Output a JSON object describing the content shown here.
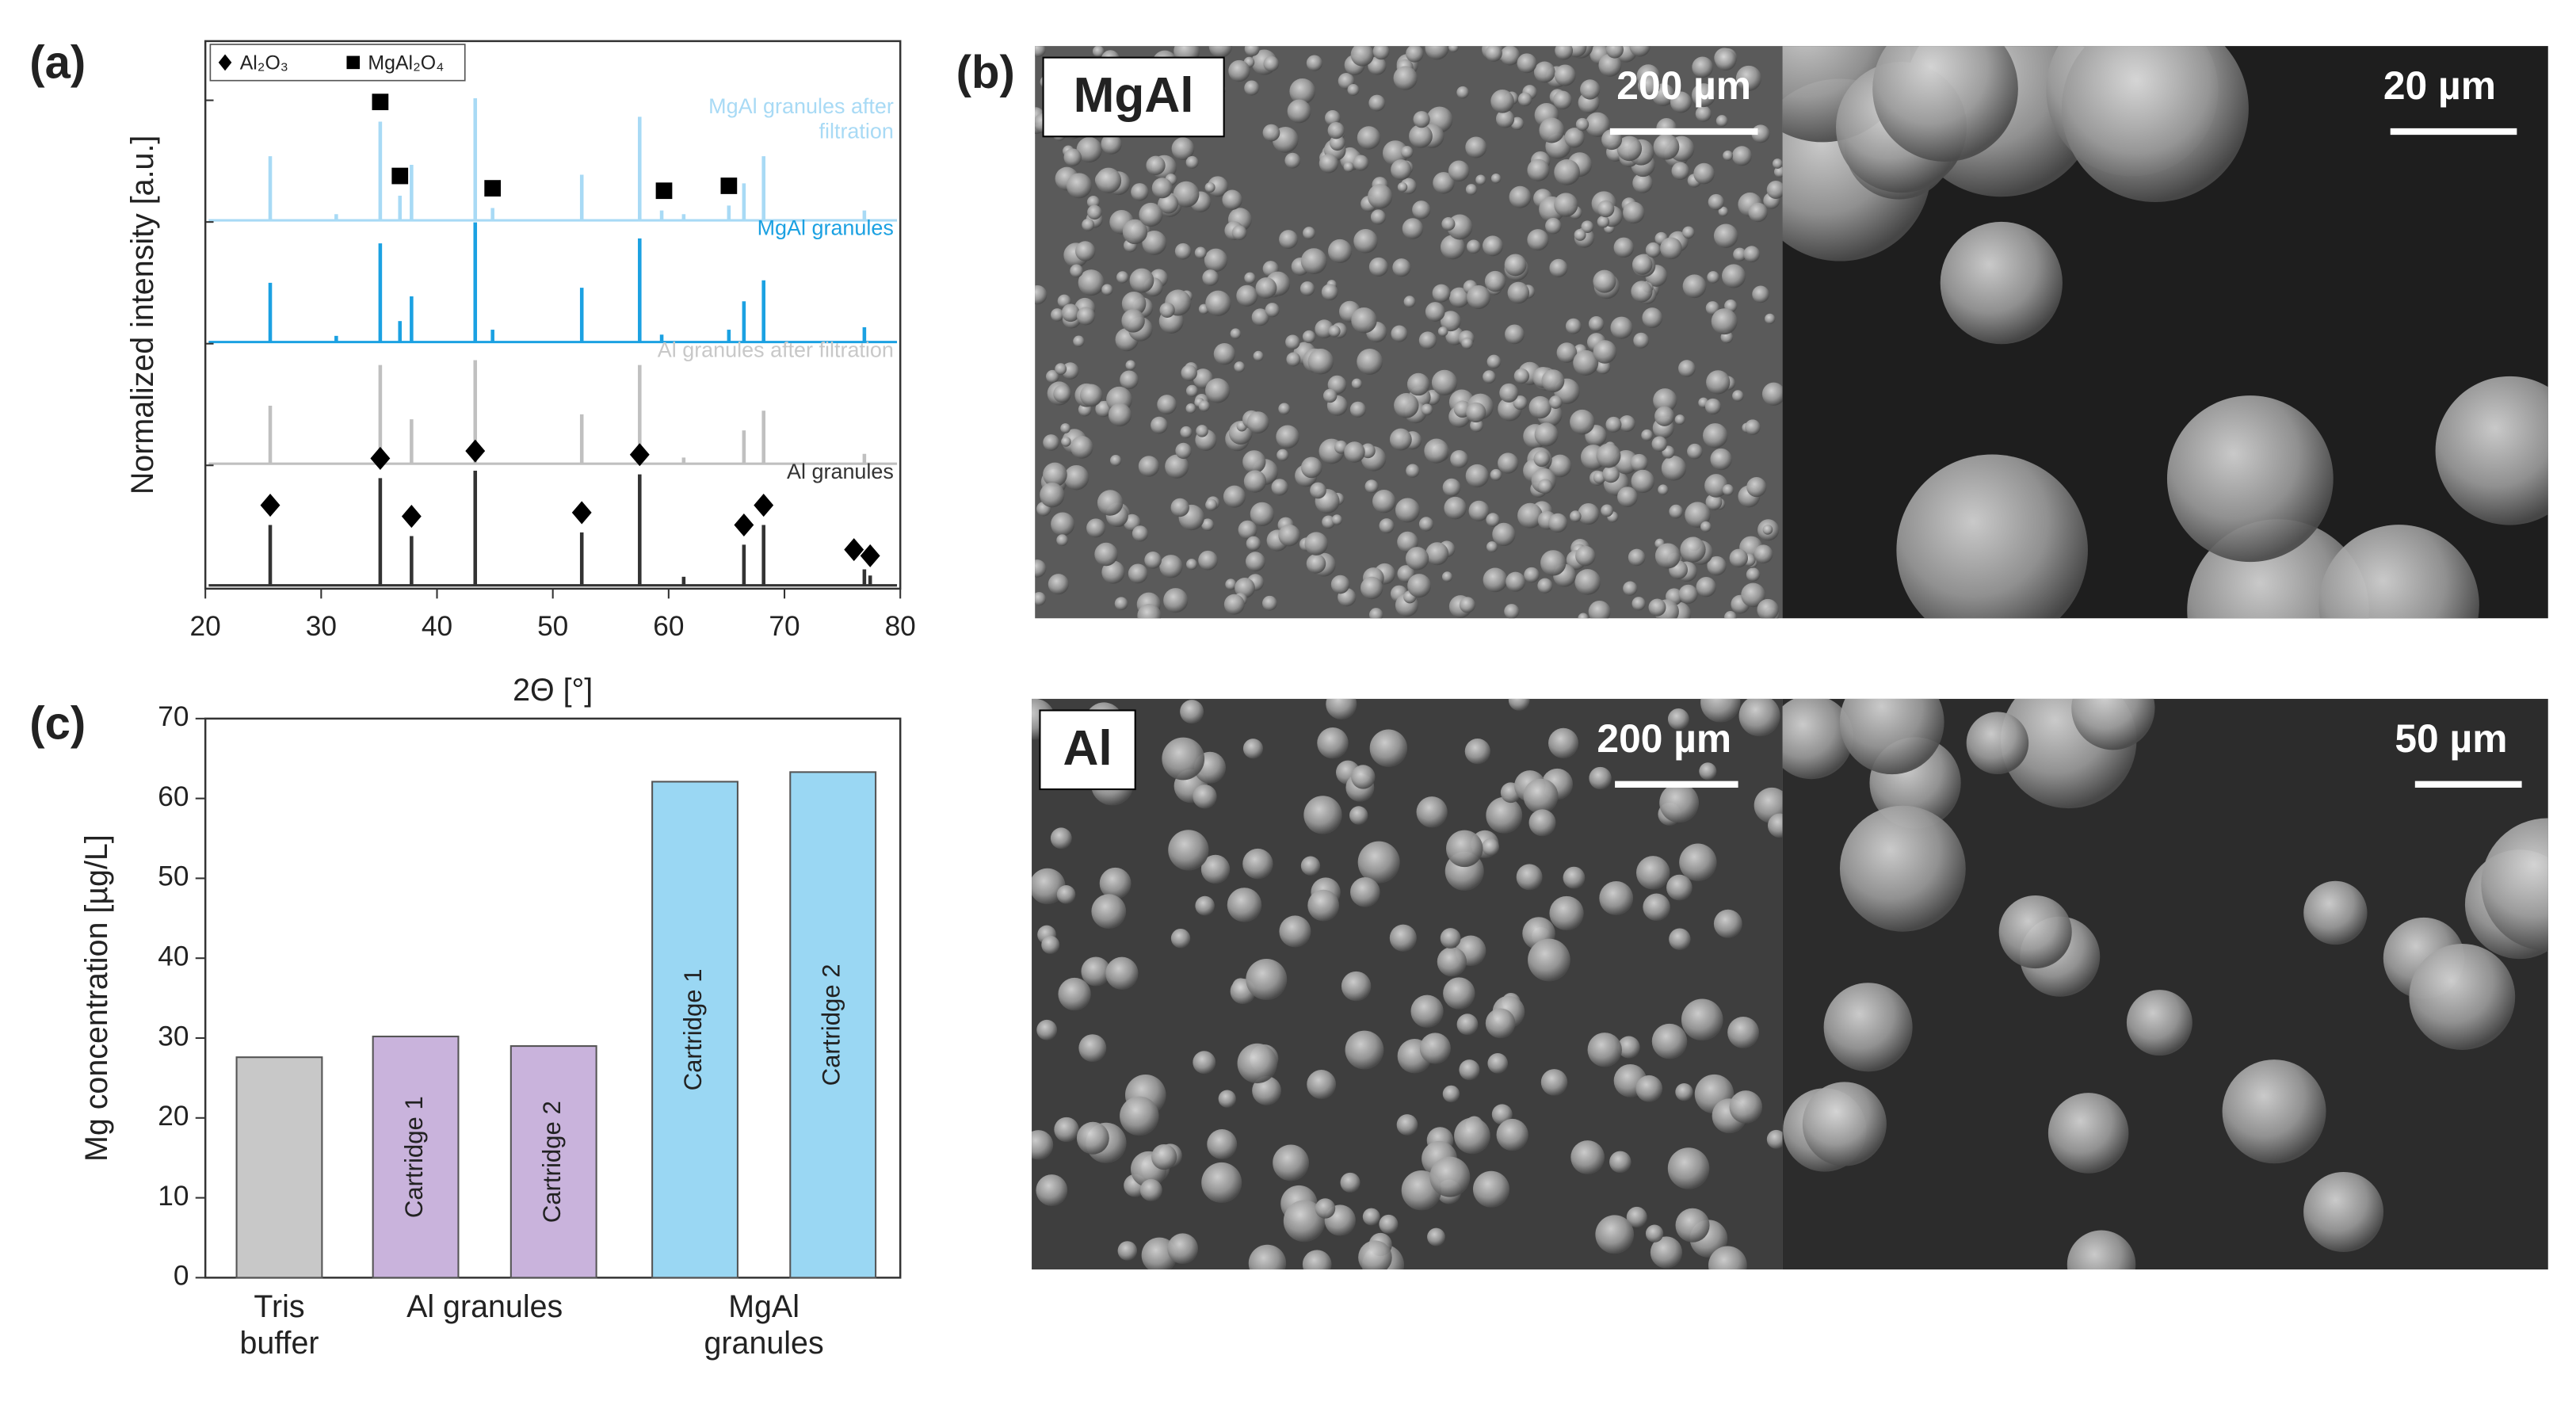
{
  "panels": {
    "a": "(a)",
    "b": "(b)",
    "c": "(c)"
  },
  "chart_data": [
    {
      "type": "line",
      "xlabel": "2Θ [°]",
      "ylabel": "Normalized intensity [a.u.]",
      "xlim": [
        20,
        80
      ],
      "xticks": [
        20,
        30,
        40,
        50,
        60,
        70,
        80
      ],
      "legend": "upper left",
      "series": [
        {
          "name": "MgAl granules after filtration",
          "color": "#a8daf5",
          "x": [
            25.6,
            31.3,
            35.1,
            36.8,
            37.8,
            43.3,
            44.8,
            52.5,
            57.5,
            59.4,
            61.3,
            65.2,
            66.5,
            68.2,
            76.9
          ],
          "values": [
            0.52,
            0.05,
            0.8,
            0.2,
            0.45,
            0.99,
            0.1,
            0.37,
            0.84,
            0.08,
            0.05,
            0.12,
            0.3,
            0.52,
            0.08
          ],
          "phase": {
            "name": "MgAl₂O₄",
            "shape": "square",
            "x": [
              35.1,
              36.8,
              44.8,
              59.6,
              65.2
            ]
          }
        },
        {
          "name": "MgAl granules",
          "color": "#1ba1e2",
          "x": [
            25.6,
            31.3,
            35.1,
            36.8,
            37.8,
            43.3,
            44.8,
            52.5,
            57.5,
            59.4,
            65.2,
            66.5,
            68.2,
            76.9
          ],
          "values": [
            0.48,
            0.05,
            0.8,
            0.17,
            0.37,
            0.97,
            0.1,
            0.44,
            0.84,
            0.06,
            0.1,
            0.33,
            0.5,
            0.12
          ]
        },
        {
          "name": "Al granules after filtration",
          "color": "#c0c0c0",
          "x": [
            25.6,
            35.1,
            37.8,
            43.3,
            52.5,
            57.5,
            61.3,
            66.5,
            68.2,
            76.9
          ],
          "values": [
            0.47,
            0.8,
            0.36,
            0.84,
            0.4,
            0.8,
            0.05,
            0.27,
            0.43,
            0.08
          ]
        },
        {
          "name": "Al granules",
          "color": "#333333",
          "x": [
            25.6,
            35.1,
            37.8,
            43.3,
            52.5,
            57.5,
            61.3,
            66.5,
            68.2,
            76.9,
            77.4
          ],
          "values": [
            0.49,
            0.87,
            0.4,
            0.93,
            0.43,
            0.9,
            0.07,
            0.33,
            0.49,
            0.13,
            0.08
          ],
          "phase": {
            "name": "Al₂O₃",
            "shape": "diamond",
            "x": [
              25.6,
              35.1,
              37.8,
              43.3,
              52.5,
              57.5,
              66.5,
              68.2,
              76.0,
              77.4
            ]
          }
        }
      ]
    },
    {
      "type": "bar",
      "ylabel": "Mg concentration [µg/L]",
      "ylim": [
        0,
        70
      ],
      "yticks": [
        0,
        10,
        20,
        30,
        40,
        50,
        60,
        70
      ],
      "series": [
        {
          "name": "Tris buffer",
          "color": "#c8c8c8",
          "labels": [
            null
          ],
          "values": [
            27.6
          ]
        },
        {
          "name": "Al granules",
          "color": "#c9b3dc",
          "labels": [
            "Cartridge 1",
            "Cartridge 2"
          ],
          "values": [
            30.2,
            29.0
          ]
        },
        {
          "name": "MgAl granules",
          "color": "#9ad7f3",
          "labels": [
            "Cartridge 1",
            "Cartridge 2"
          ],
          "values": [
            62.1,
            63.3
          ]
        }
      ]
    }
  ],
  "sem": [
    {
      "label": "MgAl",
      "scale_bars": [
        "200 µm",
        "20 µm"
      ]
    },
    {
      "label": "Al",
      "scale_bars": [
        "200 µm",
        "50 µm"
      ]
    }
  ]
}
